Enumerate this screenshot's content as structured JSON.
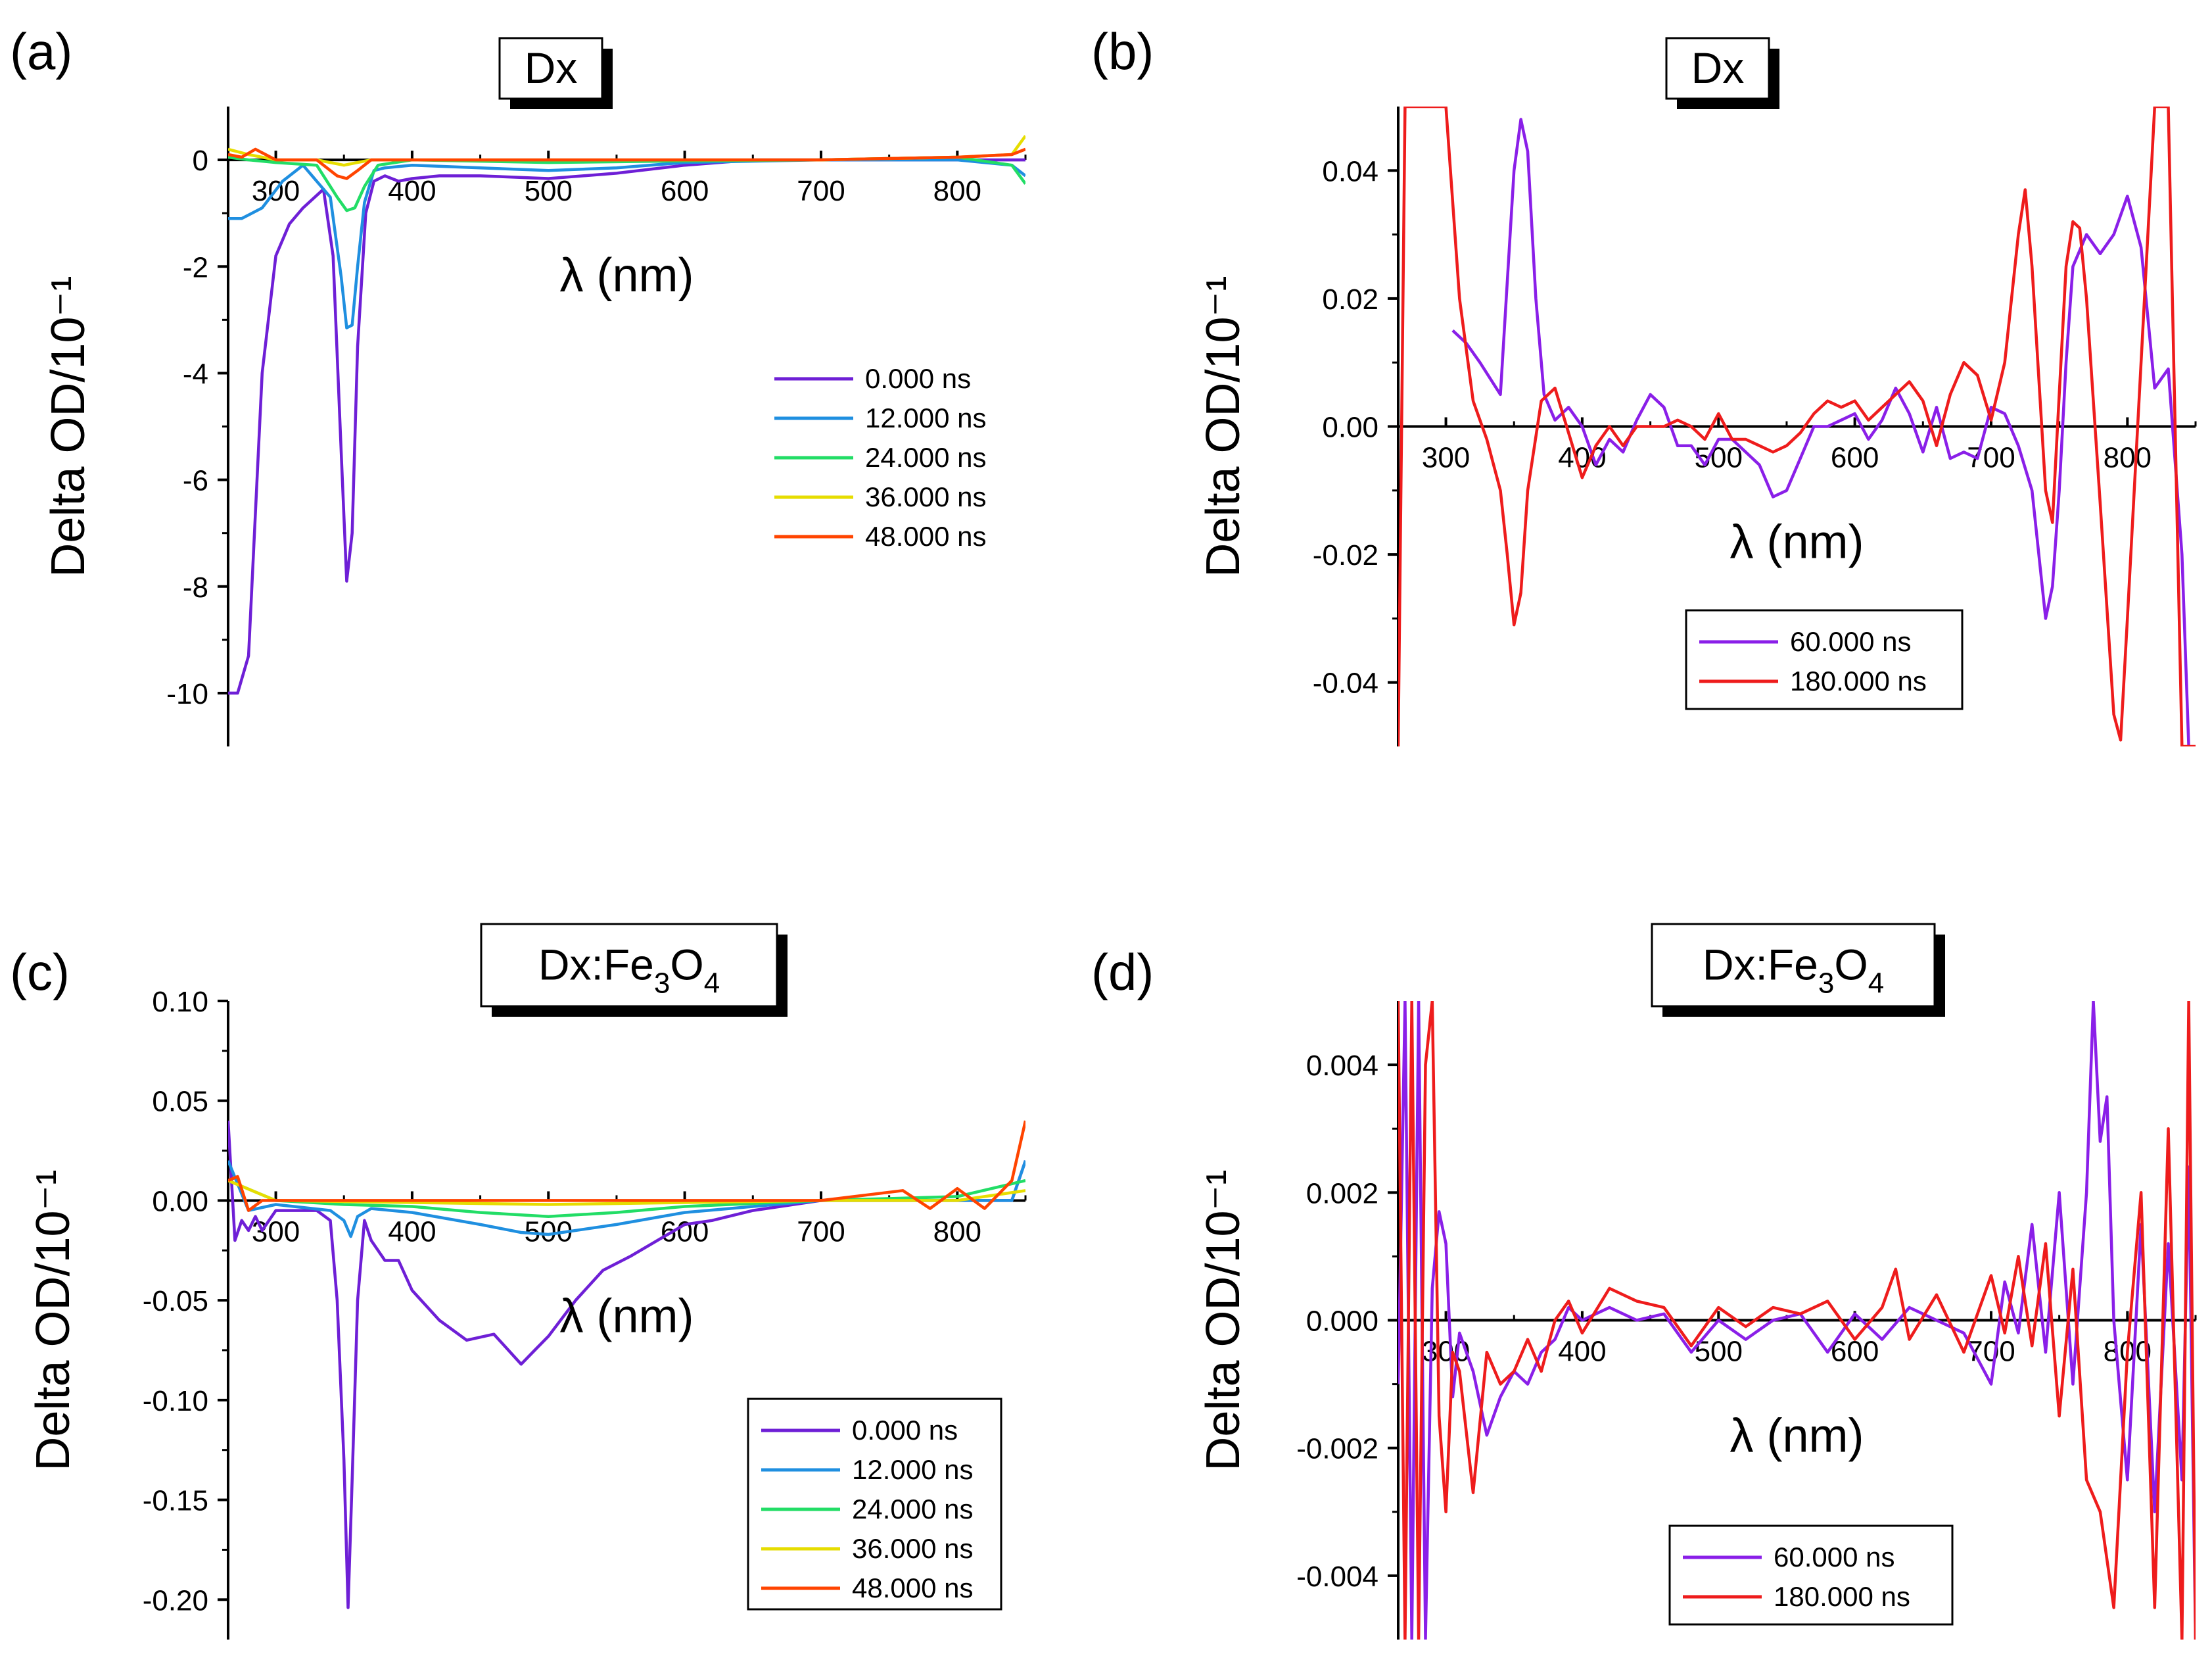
{
  "chart_data": [
    {
      "id": "a",
      "type": "line",
      "panel_label": "(a)",
      "title": "Dx",
      "xlabel": "λ (nm)",
      "ylabel": "Delta OD/10⁻¹",
      "xlim": [
        265,
        850
      ],
      "ylim": [
        -11,
        1
      ],
      "x_axis_at": 0,
      "xticks": [
        300,
        400,
        500,
        600,
        700,
        800
      ],
      "yticks": [
        0,
        -2,
        -4,
        -6,
        -8,
        -10
      ],
      "ytick_labels": [
        "0",
        "-2",
        "-4",
        "-6",
        "-8",
        "-10"
      ],
      "legend_boxed": false,
      "series": [
        {
          "name": "0.000 ns",
          "color": "#6e1fd6",
          "x": [
            265,
            272,
            280,
            290,
            300,
            310,
            320,
            335,
            342,
            348,
            352,
            356,
            360,
            366,
            372,
            380,
            390,
            400,
            420,
            450,
            500,
            550,
            600,
            650,
            700,
            750,
            800,
            830,
            850
          ],
          "y": [
            -10,
            -10,
            -9.3,
            -4,
            -1.8,
            -1.2,
            -0.9,
            -0.55,
            -1.8,
            -5.5,
            -7.9,
            -7.0,
            -3.5,
            -1.0,
            -0.4,
            -0.3,
            -0.4,
            -0.35,
            -0.3,
            -0.3,
            -0.35,
            -0.25,
            -0.1,
            0,
            0,
            0,
            0,
            0,
            0
          ]
        },
        {
          "name": "12.000 ns",
          "color": "#1f8fe0",
          "x": [
            265,
            275,
            290,
            305,
            320,
            340,
            348,
            352,
            356,
            360,
            365,
            372,
            380,
            400,
            450,
            500,
            550,
            600,
            700,
            800,
            840,
            850
          ],
          "y": [
            -1.1,
            -1.1,
            -0.9,
            -0.4,
            -0.1,
            -0.7,
            -2.2,
            -3.15,
            -3.1,
            -2.0,
            -0.8,
            -0.2,
            -0.15,
            -0.1,
            -0.15,
            -0.2,
            -0.15,
            -0.05,
            0,
            0,
            -0.1,
            -0.3
          ]
        },
        {
          "name": "24.000 ns",
          "color": "#22dd66",
          "x": [
            265,
            280,
            300,
            330,
            345,
            352,
            358,
            365,
            375,
            400,
            500,
            600,
            700,
            800,
            840,
            850
          ],
          "y": [
            0.05,
            0,
            -0.05,
            -0.1,
            -0.7,
            -0.95,
            -0.9,
            -0.5,
            -0.1,
            0,
            -0.05,
            -0.02,
            0,
            0.05,
            -0.1,
            -0.45
          ]
        },
        {
          "name": "36.000 ns",
          "color": "#e6dd00",
          "x": [
            265,
            280,
            300,
            330,
            350,
            360,
            370,
            400,
            500,
            600,
            700,
            800,
            840,
            850
          ],
          "y": [
            0.2,
            0.1,
            0,
            0,
            -0.1,
            -0.05,
            0,
            0,
            0,
            0,
            0,
            0.05,
            0.1,
            0.45
          ]
        },
        {
          "name": "48.000 ns",
          "color": "#ff4400",
          "x": [
            265,
            275,
            285,
            300,
            330,
            345,
            352,
            360,
            370,
            400,
            500,
            600,
            700,
            800,
            840,
            850
          ],
          "y": [
            0.1,
            0.05,
            0.2,
            0,
            0,
            -0.3,
            -0.35,
            -0.2,
            0,
            0,
            0,
            0,
            0,
            0.05,
            0.1,
            0.2
          ]
        }
      ]
    },
    {
      "id": "b",
      "type": "line",
      "panel_label": "(b)",
      "title": "Dx",
      "xlabel": "λ (nm)",
      "ylabel": "Delta OD/10⁻¹",
      "xlim": [
        265,
        850
      ],
      "ylim": [
        -0.05,
        0.05
      ],
      "x_axis_at": 0,
      "xticks": [
        300,
        400,
        500,
        600,
        700,
        800
      ],
      "yticks": [
        0.04,
        0.02,
        0.0,
        -0.02,
        -0.04
      ],
      "ytick_labels": [
        "0.04",
        "0.02",
        "0.00",
        "-0.02",
        "-0.04"
      ],
      "legend_boxed": true,
      "series": [
        {
          "name": "60.000 ns",
          "color": "#8a1fe8",
          "x": [
            305,
            315,
            325,
            340,
            350,
            355,
            360,
            366,
            372,
            380,
            390,
            400,
            410,
            420,
            430,
            440,
            450,
            460,
            470,
            480,
            490,
            500,
            510,
            520,
            530,
            540,
            550,
            560,
            570,
            580,
            590,
            600,
            610,
            620,
            630,
            640,
            650,
            660,
            670,
            680,
            690,
            700,
            710,
            720,
            730,
            740,
            745,
            750,
            755,
            760,
            770,
            780,
            790,
            800,
            810,
            820,
            830,
            840,
            845
          ],
          "y": [
            0.015,
            0.013,
            0.01,
            0.005,
            0.04,
            0.048,
            0.043,
            0.02,
            0.005,
            0.001,
            0.003,
            0,
            -0.006,
            -0.002,
            -0.004,
            0.001,
            0.005,
            0.003,
            -0.003,
            -0.003,
            -0.006,
            -0.002,
            -0.002,
            -0.004,
            -0.006,
            -0.011,
            -0.01,
            -0.005,
            0,
            0,
            0.001,
            0.002,
            -0.002,
            0.001,
            0.006,
            0.002,
            -0.004,
            0.003,
            -0.005,
            -0.004,
            -0.005,
            0.003,
            0.002,
            -0.003,
            -0.01,
            -0.03,
            -0.025,
            -0.01,
            0.01,
            0.025,
            0.03,
            0.027,
            0.03,
            0.036,
            0.028,
            0.006,
            0.009,
            -0.02,
            -0.05
          ]
        },
        {
          "name": "180.000 ns",
          "color": "#ee1c1c",
          "x": [
            265,
            270,
            280,
            290,
            300,
            310,
            320,
            330,
            340,
            345,
            350,
            355,
            360,
            370,
            380,
            390,
            400,
            410,
            420,
            430,
            440,
            450,
            460,
            470,
            480,
            490,
            500,
            510,
            520,
            530,
            540,
            550,
            560,
            570,
            580,
            590,
            600,
            610,
            620,
            630,
            640,
            650,
            660,
            670,
            680,
            690,
            700,
            710,
            720,
            725,
            730,
            740,
            745,
            750,
            755,
            760,
            765,
            770,
            780,
            790,
            795,
            800,
            810,
            820,
            830,
            840,
            850
          ],
          "y": [
            -0.05,
            0.05,
            0.05,
            0.05,
            0.05,
            0.02,
            0.004,
            -0.002,
            -0.01,
            -0.02,
            -0.031,
            -0.026,
            -0.01,
            0.004,
            0.006,
            -0.001,
            -0.008,
            -0.003,
            0,
            -0.003,
            0,
            0,
            0,
            0.001,
            0,
            -0.002,
            0.002,
            -0.002,
            -0.002,
            -0.003,
            -0.004,
            -0.003,
            -0.001,
            0.002,
            0.004,
            0.003,
            0.004,
            0.001,
            0.003,
            0.005,
            0.007,
            0.004,
            -0.003,
            0.005,
            0.01,
            0.008,
            0.001,
            0.01,
            0.03,
            0.037,
            0.025,
            -0.01,
            -0.015,
            0.005,
            0.025,
            0.032,
            0.031,
            0.02,
            -0.012,
            -0.045,
            -0.049,
            -0.03,
            0.01,
            0.05,
            0.05,
            -0.05,
            -0.05
          ]
        }
      ]
    },
    {
      "id": "c",
      "type": "line",
      "panel_label": "(c)",
      "title": "Dx:Fe3O4",
      "title_parts": {
        "main": "Dx:Fe",
        "sub1": "3",
        "mid": "O",
        "sub2": "4"
      },
      "xlabel": "λ (nm)",
      "ylabel": "Delta OD/10⁻¹",
      "xlim": [
        265,
        850
      ],
      "ylim": [
        -0.22,
        0.1
      ],
      "x_axis_at": 0,
      "xticks": [
        300,
        400,
        500,
        600,
        700,
        800
      ],
      "yticks": [
        0.1,
        0.05,
        0.0,
        -0.05,
        -0.1,
        -0.15,
        -0.2
      ],
      "ytick_labels": [
        "0.10",
        "0.05",
        "0.00",
        "-0.05",
        "-0.10",
        "-0.15",
        "-0.20"
      ],
      "legend_boxed": true,
      "series": [
        {
          "name": "0.000 ns",
          "color": "#6e1fd6",
          "x": [
            265,
            270,
            275,
            280,
            285,
            290,
            300,
            310,
            320,
            330,
            340,
            345,
            350,
            353,
            356,
            360,
            365,
            370,
            380,
            390,
            400,
            420,
            440,
            460,
            480,
            490,
            500,
            520,
            540,
            560,
            580,
            600,
            620,
            650,
            700,
            750,
            800,
            840,
            850
          ],
          "y": [
            0.04,
            -0.02,
            -0.01,
            -0.015,
            -0.008,
            -0.015,
            -0.005,
            -0.005,
            -0.005,
            -0.005,
            -0.01,
            -0.05,
            -0.13,
            -0.204,
            -0.14,
            -0.05,
            -0.01,
            -0.02,
            -0.03,
            -0.03,
            -0.045,
            -0.06,
            -0.07,
            -0.067,
            -0.082,
            -0.075,
            -0.068,
            -0.05,
            -0.035,
            -0.028,
            -0.02,
            -0.012,
            -0.01,
            -0.005,
            0,
            0,
            0,
            0,
            0.02
          ]
        },
        {
          "name": "12.000 ns",
          "color": "#1f8fe0",
          "x": [
            265,
            280,
            300,
            340,
            350,
            355,
            360,
            370,
            400,
            450,
            480,
            500,
            550,
            600,
            650,
            700,
            800,
            840,
            850
          ],
          "y": [
            0.02,
            -0.005,
            -0.002,
            -0.005,
            -0.01,
            -0.018,
            -0.008,
            -0.004,
            -0.006,
            -0.012,
            -0.016,
            -0.017,
            -0.012,
            -0.006,
            -0.003,
            0,
            0,
            0,
            0.02
          ]
        },
        {
          "name": "24.000 ns",
          "color": "#22dd66",
          "x": [
            265,
            300,
            350,
            400,
            450,
            500,
            550,
            600,
            700,
            800,
            850
          ],
          "y": [
            0.01,
            0,
            -0.002,
            -0.003,
            -0.006,
            -0.008,
            -0.006,
            -0.003,
            0,
            0.002,
            0.01
          ]
        },
        {
          "name": "36.000 ns",
          "color": "#e6dd00",
          "x": [
            265,
            300,
            400,
            500,
            600,
            700,
            800,
            850
          ],
          "y": [
            0.01,
            0,
            -0.001,
            -0.002,
            -0.001,
            0,
            0,
            0.005
          ]
        },
        {
          "name": "48.000 ns",
          "color": "#ff4400",
          "x": [
            265,
            272,
            280,
            290,
            300,
            350,
            400,
            500,
            600,
            700,
            760,
            780,
            800,
            820,
            840,
            850
          ],
          "y": [
            0.01,
            0.012,
            -0.005,
            0,
            0,
            0,
            0,
            0,
            0,
            0,
            0.005,
            -0.004,
            0.006,
            -0.004,
            0.01,
            0.04
          ]
        }
      ]
    },
    {
      "id": "d",
      "type": "line",
      "panel_label": "(d)",
      "title": "Dx:Fe3O4",
      "title_parts": {
        "main": "Dx:Fe",
        "sub1": "3",
        "mid": "O",
        "sub2": "4"
      },
      "xlabel": "λ (nm)",
      "ylabel": "Delta OD/10⁻¹",
      "xlim": [
        265,
        850
      ],
      "ylim": [
        -0.005,
        0.005
      ],
      "x_axis_at": 0,
      "xticks": [
        300,
        400,
        500,
        600,
        700,
        800
      ],
      "yticks": [
        0.004,
        0.002,
        0.0,
        -0.002,
        -0.004
      ],
      "ytick_labels": [
        "0.004",
        "0.002",
        "0.000",
        "-0.002",
        "-0.004"
      ],
      "legend_boxed": true,
      "series": [
        {
          "name": "60.000 ns",
          "color": "#8a1fe8",
          "x": [
            265,
            270,
            275,
            280,
            285,
            290,
            295,
            300,
            305,
            310,
            320,
            330,
            340,
            350,
            360,
            370,
            380,
            390,
            400,
            420,
            440,
            460,
            480,
            500,
            520,
            540,
            560,
            580,
            600,
            620,
            640,
            660,
            680,
            700,
            710,
            720,
            730,
            740,
            750,
            760,
            770,
            775,
            780,
            785,
            790,
            800,
            810,
            820,
            830,
            840,
            845,
            850
          ],
          "y": [
            -0.001,
            0.005,
            -0.005,
            0.005,
            -0.005,
            0.0005,
            0.0017,
            0.0012,
            -0.0012,
            -0.0002,
            -0.0008,
            -0.0018,
            -0.0012,
            -0.0008,
            -0.001,
            -0.0005,
            -0.0003,
            0.0002,
            0,
            0.0002,
            0,
            0.0001,
            -0.0005,
            0,
            -0.0003,
            0,
            0.0001,
            -0.0005,
            0.0001,
            -0.0003,
            0.0002,
            0,
            -0.0002,
            -0.001,
            0.0006,
            -0.0002,
            0.0015,
            -0.0005,
            0.002,
            -0.001,
            0.002,
            0.005,
            0.0028,
            0.0035,
            0,
            -0.0025,
            0.0015,
            -0.003,
            0.0012,
            -0.0025,
            0.0024,
            -0.005
          ]
        },
        {
          "name": "180.000 ns",
          "color": "#ee1c1c",
          "x": [
            265,
            270,
            275,
            280,
            285,
            290,
            295,
            300,
            305,
            310,
            320,
            330,
            340,
            350,
            360,
            370,
            380,
            390,
            400,
            420,
            440,
            460,
            480,
            500,
            520,
            540,
            560,
            580,
            600,
            620,
            630,
            640,
            660,
            680,
            700,
            710,
            720,
            730,
            740,
            750,
            760,
            770,
            780,
            790,
            800,
            810,
            820,
            830,
            840,
            845,
            850
          ],
          "y": [
            0.005,
            -0.005,
            0.005,
            -0.005,
            0.004,
            0.005,
            -0.0015,
            -0.003,
            -0.0005,
            -0.0008,
            -0.0027,
            -0.0005,
            -0.001,
            -0.0008,
            -0.0003,
            -0.0008,
            0,
            0.0003,
            -0.0002,
            0.0005,
            0.0003,
            0.0002,
            -0.0004,
            0.0002,
            -0.0001,
            0.0002,
            0.0001,
            0.0003,
            -0.0003,
            0.0002,
            0.0008,
            -0.0003,
            0.0004,
            -0.0005,
            0.0007,
            -0.0002,
            0.001,
            -0.0004,
            0.0012,
            -0.0015,
            0.0008,
            -0.0025,
            -0.003,
            -0.0045,
            -0.0005,
            0.002,
            -0.0045,
            0.003,
            -0.005,
            0.005,
            -0.005
          ]
        }
      ]
    }
  ]
}
